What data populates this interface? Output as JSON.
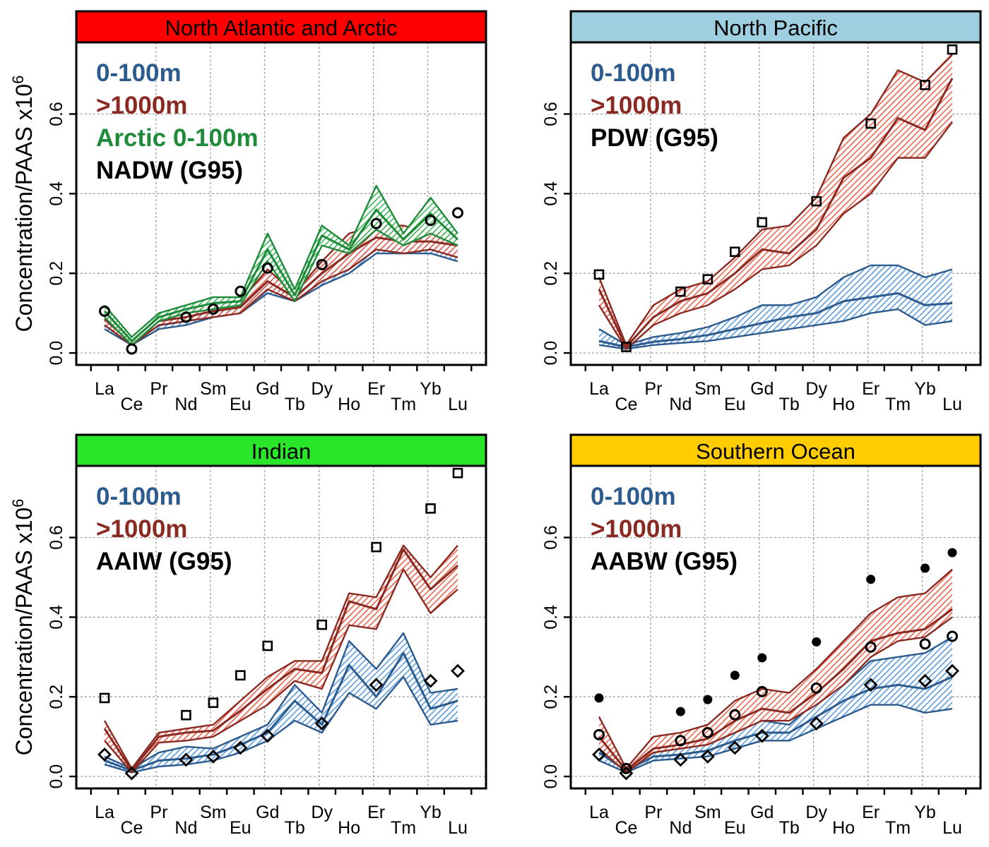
{
  "figure": {
    "ylabel": "Concentration/PAAS x10",
    "ylabel_sup": "6"
  },
  "chart_data": [
    {
      "type": "line",
      "title": "North Atlantic and Arctic",
      "header_color": "#ff0000",
      "categories": [
        "La",
        "Ce",
        "Pr",
        "Nd",
        "Sm",
        "Eu",
        "Gd",
        "Tb",
        "Dy",
        "Ho",
        "Er",
        "Tm",
        "Yb",
        "Lu"
      ],
      "y_ticks": [
        0.0,
        0.2,
        0.4,
        0.6
      ],
      "ylim": [
        -0.03,
        0.78
      ],
      "legend": [
        {
          "text": "0-100m",
          "color": "#2d5b8e"
        },
        {
          "text": ">1000m",
          "color": "#8b2a22"
        },
        {
          "text": "Arctic 0-100m",
          "color": "#1f8b3a"
        },
        {
          "text": "NADW (G95)",
          "color": "#000000"
        }
      ],
      "bands": [
        {
          "name": "0-100m",
          "line": "#2d5b8e",
          "fill": "#4a90d9",
          "lower": [
            0.06,
            0.02,
            0.06,
            0.07,
            0.09,
            0.1,
            0.15,
            0.13,
            0.17,
            0.2,
            0.25,
            0.25,
            0.25,
            0.23
          ],
          "upper": [
            0.08,
            0.03,
            0.08,
            0.09,
            0.11,
            0.12,
            0.2,
            0.15,
            0.22,
            0.24,
            0.3,
            0.28,
            0.29,
            0.28
          ],
          "mid": [
            0.07,
            0.025,
            0.07,
            0.08,
            0.1,
            0.11,
            0.17,
            0.14,
            0.19,
            0.22,
            0.27,
            0.26,
            0.27,
            0.25
          ]
        },
        {
          "name": ">1000m",
          "line": "#8b2a22",
          "fill": "#e8533a",
          "lower": [
            0.07,
            0.02,
            0.07,
            0.08,
            0.09,
            0.1,
            0.16,
            0.13,
            0.18,
            0.21,
            0.26,
            0.25,
            0.26,
            0.24
          ],
          "upper": [
            0.1,
            0.03,
            0.09,
            0.1,
            0.12,
            0.13,
            0.21,
            0.15,
            0.23,
            0.3,
            0.32,
            0.32,
            0.3,
            0.3
          ],
          "mid": [
            0.085,
            0.025,
            0.08,
            0.09,
            0.105,
            0.115,
            0.18,
            0.14,
            0.2,
            0.25,
            0.29,
            0.28,
            0.28,
            0.27
          ]
        },
        {
          "name": "Arctic 0-100m",
          "line": "#1f8b3a",
          "fill": "#27b24a",
          "lower": [
            0.09,
            0.02,
            0.08,
            0.1,
            0.11,
            0.12,
            0.23,
            0.13,
            0.27,
            0.25,
            0.31,
            0.27,
            0.3,
            0.27
          ],
          "upper": [
            0.12,
            0.04,
            0.1,
            0.12,
            0.14,
            0.14,
            0.3,
            0.16,
            0.32,
            0.27,
            0.42,
            0.3,
            0.39,
            0.3
          ],
          "mid": [
            0.105,
            0.03,
            0.09,
            0.11,
            0.125,
            0.13,
            0.26,
            0.145,
            0.295,
            0.26,
            0.36,
            0.285,
            0.35,
            0.285
          ]
        }
      ],
      "markers": [
        {
          "name": "NADW (G95)",
          "shape": "circle",
          "points": [
            [
              0,
              0.105
            ],
            [
              1,
              0.01
            ],
            [
              3,
              0.09
            ],
            [
              4,
              0.11
            ],
            [
              5,
              0.155
            ],
            [
              6,
              0.213
            ],
            [
              8,
              0.222
            ],
            [
              10,
              0.325
            ],
            [
              12,
              0.333
            ],
            [
              13,
              0.352
            ]
          ]
        }
      ]
    },
    {
      "type": "line",
      "title": "North Pacific",
      "header_color": "#9ecfe0",
      "categories": [
        "La",
        "Ce",
        "Pr",
        "Nd",
        "Sm",
        "Eu",
        "Gd",
        "Tb",
        "Dy",
        "Ho",
        "Er",
        "Tm",
        "Yb",
        "Lu"
      ],
      "y_ticks": [
        0.0,
        0.2,
        0.4,
        0.6
      ],
      "ylim": [
        -0.03,
        0.78
      ],
      "legend": [
        {
          "text": "0-100m",
          "color": "#2d5b8e"
        },
        {
          "text": ">1000m",
          "color": "#8b2a22"
        },
        {
          "text": "PDW (G95)",
          "color": "#000000"
        }
      ],
      "bands": [
        {
          "name": "0-100m",
          "line": "#2d5b8e",
          "fill": "#4a90d9",
          "lower": [
            0.02,
            0.01,
            0.02,
            0.025,
            0.03,
            0.04,
            0.05,
            0.06,
            0.07,
            0.08,
            0.1,
            0.11,
            0.07,
            0.08
          ],
          "upper": [
            0.06,
            0.02,
            0.04,
            0.05,
            0.065,
            0.09,
            0.12,
            0.12,
            0.14,
            0.19,
            0.22,
            0.22,
            0.19,
            0.21
          ],
          "mid": [
            0.03,
            0.015,
            0.028,
            0.035,
            0.045,
            0.06,
            0.075,
            0.09,
            0.1,
            0.13,
            0.14,
            0.15,
            0.12,
            0.125
          ]
        },
        {
          "name": ">1000m",
          "line": "#8b2a22",
          "fill": "#e8533a",
          "lower": [
            0.12,
            0.01,
            0.07,
            0.1,
            0.12,
            0.16,
            0.21,
            0.22,
            0.27,
            0.35,
            0.4,
            0.49,
            0.49,
            0.58
          ],
          "upper": [
            0.19,
            0.02,
            0.12,
            0.16,
            0.18,
            0.24,
            0.31,
            0.32,
            0.39,
            0.54,
            0.6,
            0.71,
            0.68,
            0.75
          ],
          "mid": [
            0.16,
            0.015,
            0.09,
            0.13,
            0.15,
            0.2,
            0.26,
            0.25,
            0.31,
            0.44,
            0.49,
            0.59,
            0.56,
            0.69
          ]
        }
      ],
      "markers": [
        {
          "name": "PDW (G95)",
          "shape": "square",
          "points": [
            [
              0,
              0.197
            ],
            [
              1,
              0.015
            ],
            [
              3,
              0.154
            ],
            [
              4,
              0.185
            ],
            [
              5,
              0.254
            ],
            [
              6,
              0.328
            ],
            [
              8,
              0.381
            ],
            [
              10,
              0.576
            ],
            [
              12,
              0.673
            ],
            [
              13,
              0.762
            ]
          ]
        }
      ]
    },
    {
      "type": "line",
      "title": "Indian",
      "header_color": "#2ae62a",
      "categories": [
        "La",
        "Ce",
        "Pr",
        "Nd",
        "Sm",
        "Eu",
        "Gd",
        "Tb",
        "Dy",
        "Ho",
        "Er",
        "Tm",
        "Yb",
        "Lu"
      ],
      "y_ticks": [
        0.0,
        0.2,
        0.4,
        0.6
      ],
      "ylim": [
        -0.03,
        0.78
      ],
      "legend": [
        {
          "text": "0-100m",
          "color": "#2d5b8e"
        },
        {
          "text": ">1000m",
          "color": "#8b2a22"
        },
        {
          "text": "AAIW (G95)",
          "color": "#000000"
        }
      ],
      "bands": [
        {
          "name": "0-100m",
          "line": "#2d5b8e",
          "fill": "#4a90d9",
          "lower": [
            0.03,
            0.01,
            0.025,
            0.03,
            0.04,
            0.06,
            0.09,
            0.14,
            0.11,
            0.21,
            0.17,
            0.25,
            0.13,
            0.14
          ],
          "upper": [
            0.05,
            0.02,
            0.06,
            0.075,
            0.07,
            0.1,
            0.13,
            0.23,
            0.16,
            0.34,
            0.27,
            0.36,
            0.21,
            0.22
          ],
          "mid": [
            0.04,
            0.015,
            0.04,
            0.045,
            0.055,
            0.08,
            0.11,
            0.19,
            0.13,
            0.28,
            0.2,
            0.31,
            0.17,
            0.19
          ]
        },
        {
          "name": ">1000m",
          "line": "#8b2a22",
          "fill": "#e8533a",
          "lower": [
            0.09,
            0.01,
            0.085,
            0.09,
            0.1,
            0.14,
            0.18,
            0.24,
            0.22,
            0.38,
            0.37,
            0.52,
            0.41,
            0.47
          ],
          "upper": [
            0.14,
            0.02,
            0.11,
            0.12,
            0.13,
            0.19,
            0.25,
            0.29,
            0.29,
            0.46,
            0.45,
            0.58,
            0.5,
            0.58
          ],
          "mid": [
            0.12,
            0.015,
            0.1,
            0.11,
            0.115,
            0.165,
            0.22,
            0.27,
            0.26,
            0.44,
            0.42,
            0.57,
            0.47,
            0.53
          ]
        }
      ],
      "markers": [
        {
          "name": "AAIW (G95)",
          "shape": "square",
          "points": [
            [
              0,
              0.197
            ],
            [
              3,
              0.154
            ],
            [
              4,
              0.185
            ],
            [
              5,
              0.254
            ],
            [
              6,
              0.328
            ],
            [
              8,
              0.381
            ],
            [
              10,
              0.576
            ],
            [
              12,
              0.673
            ],
            [
              13,
              0.762
            ]
          ]
        },
        {
          "name": "AAIW (G95)",
          "shape": "diamond",
          "points": [
            [
              0,
              0.055
            ],
            [
              1,
              0.008
            ],
            [
              3,
              0.042
            ],
            [
              4,
              0.05
            ],
            [
              5,
              0.072
            ],
            [
              6,
              0.102
            ],
            [
              8,
              0.133
            ],
            [
              10,
              0.23
            ],
            [
              12,
              0.24
            ],
            [
              13,
              0.265
            ]
          ]
        }
      ]
    },
    {
      "type": "line",
      "title": "Southern Ocean",
      "header_color": "#ffcc00",
      "categories": [
        "La",
        "Ce",
        "Pr",
        "Nd",
        "Sm",
        "Eu",
        "Gd",
        "Tb",
        "Dy",
        "Ho",
        "Er",
        "Tm",
        "Yb",
        "Lu"
      ],
      "y_ticks": [
        0.0,
        0.2,
        0.4,
        0.6
      ],
      "ylim": [
        -0.03,
        0.78
      ],
      "legend": [
        {
          "text": "0-100m",
          "color": "#2d5b8e"
        },
        {
          "text": ">1000m",
          "color": "#8b2a22"
        },
        {
          "text": "AABW (G95)",
          "color": "#000000"
        }
      ],
      "bands": [
        {
          "name": "0-100m",
          "line": "#2d5b8e",
          "fill": "#4a90d9",
          "lower": [
            0.04,
            0.01,
            0.04,
            0.045,
            0.05,
            0.07,
            0.09,
            0.09,
            0.12,
            0.15,
            0.18,
            0.18,
            0.16,
            0.17
          ],
          "upper": [
            0.08,
            0.02,
            0.06,
            0.07,
            0.08,
            0.11,
            0.14,
            0.13,
            0.19,
            0.23,
            0.29,
            0.3,
            0.31,
            0.35
          ],
          "mid": [
            0.06,
            0.015,
            0.05,
            0.055,
            0.065,
            0.09,
            0.11,
            0.11,
            0.15,
            0.19,
            0.22,
            0.23,
            0.22,
            0.25
          ]
        },
        {
          "name": ">1000m",
          "line": "#8b2a22",
          "fill": "#e8533a",
          "lower": [
            0.07,
            0.01,
            0.06,
            0.07,
            0.08,
            0.11,
            0.14,
            0.14,
            0.18,
            0.23,
            0.3,
            0.34,
            0.35,
            0.4
          ],
          "upper": [
            0.15,
            0.02,
            0.1,
            0.11,
            0.13,
            0.19,
            0.22,
            0.21,
            0.27,
            0.34,
            0.41,
            0.45,
            0.46,
            0.52
          ],
          "mid": [
            0.1,
            0.015,
            0.07,
            0.08,
            0.095,
            0.14,
            0.17,
            0.16,
            0.21,
            0.27,
            0.34,
            0.36,
            0.37,
            0.42
          ]
        }
      ],
      "markers": [
        {
          "name": "AABW (G95)",
          "shape": "dot",
          "points": [
            [
              0,
              0.197
            ],
            [
              3,
              0.163
            ],
            [
              4,
              0.193
            ],
            [
              5,
              0.254
            ],
            [
              6,
              0.298
            ],
            [
              8,
              0.338
            ],
            [
              10,
              0.495
            ],
            [
              12,
              0.523
            ],
            [
              13,
              0.562
            ]
          ]
        },
        {
          "name": "AABW (G95)",
          "shape": "circle",
          "points": [
            [
              0,
              0.105
            ],
            [
              1,
              0.02
            ],
            [
              3,
              0.09
            ],
            [
              4,
              0.11
            ],
            [
              5,
              0.155
            ],
            [
              6,
              0.213
            ],
            [
              8,
              0.222
            ],
            [
              10,
              0.325
            ],
            [
              12,
              0.333
            ],
            [
              13,
              0.352
            ]
          ]
        },
        {
          "name": "AABW (G95)",
          "shape": "diamond",
          "points": [
            [
              0,
              0.055
            ],
            [
              1,
              0.008
            ],
            [
              3,
              0.042
            ],
            [
              4,
              0.05
            ],
            [
              5,
              0.072
            ],
            [
              6,
              0.102
            ],
            [
              8,
              0.133
            ],
            [
              10,
              0.23
            ],
            [
              12,
              0.24
            ],
            [
              13,
              0.265
            ]
          ]
        }
      ]
    }
  ]
}
